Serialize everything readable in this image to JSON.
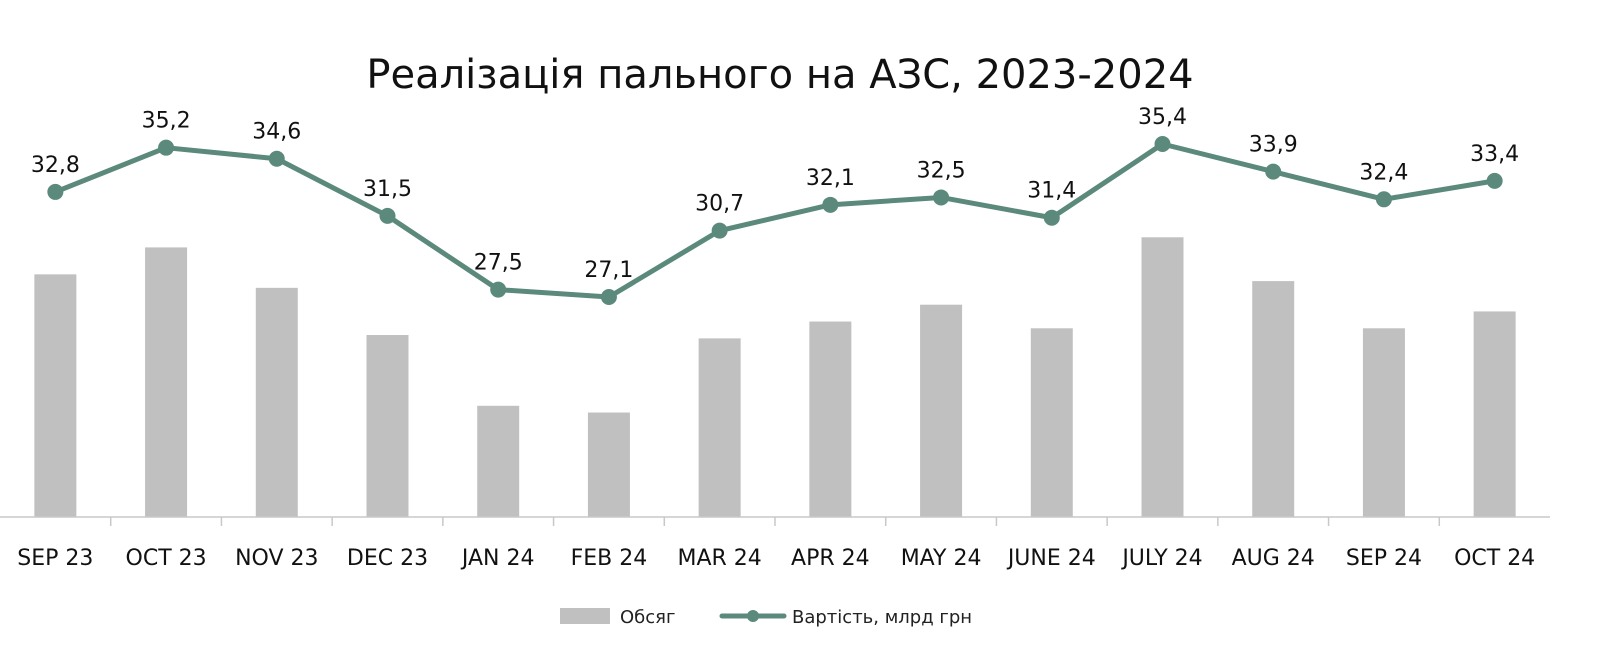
{
  "chart_data": {
    "type": "bar",
    "title": "Реалізація пального на АЗС, 2023-2024",
    "xlabel": "",
    "ylabel": "",
    "categories": [
      "SEP 23",
      "OCT 23",
      "NOV 23",
      "DEC 23",
      "JAN 24",
      "FEB 24",
      "MAR 24",
      "APR 24",
      "MAY 24",
      "JUNE 24",
      "JULY 24",
      "AUG 24",
      "SEP 24",
      "OCT 24"
    ],
    "series": [
      {
        "name": "Обсяг",
        "type": "bar",
        "color": "#c0c0c0",
        "values": [
          0.72,
          0.8,
          0.68,
          0.54,
          0.33,
          0.31,
          0.53,
          0.58,
          0.63,
          0.56,
          0.83,
          0.7,
          0.56,
          0.61
        ]
      },
      {
        "name": "Вартість, млрд грн",
        "type": "line",
        "color": "#5b8a7c",
        "values": [
          32.8,
          35.2,
          34.6,
          31.5,
          27.5,
          27.1,
          30.7,
          32.1,
          32.5,
          31.4,
          35.4,
          33.9,
          32.4,
          33.4
        ],
        "labels": [
          "32,8",
          "35,2",
          "34,6",
          "31,5",
          "27,5",
          "27,1",
          "30,7",
          "32,1",
          "32,5",
          "31,4",
          "35,4",
          "33,9",
          "32,4",
          "33,4"
        ]
      }
    ],
    "grid": false,
    "legend_position": "bottom-center"
  }
}
